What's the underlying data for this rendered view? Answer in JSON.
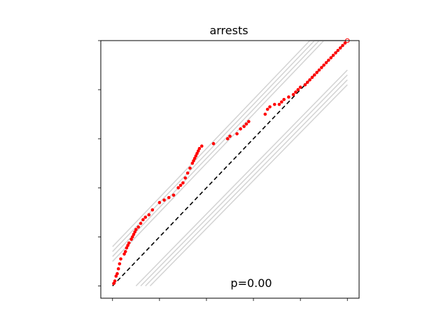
{
  "chart_data": {
    "type": "scatter",
    "title": "arrests",
    "xlabel": "",
    "ylabel": "",
    "annotation": "p=0.00",
    "xlim": [
      -0.05,
      1.05
    ],
    "ylim": [
      -0.05,
      1.0
    ],
    "x_ticks": [
      0.0,
      0.2,
      0.4,
      0.6,
      0.8,
      1.0
    ],
    "y_ticks": [
      0.0,
      0.2,
      0.4,
      0.6,
      0.8,
      1.0
    ],
    "tick_labels_visible": false,
    "grid": false,
    "reference_line": {
      "style": "dashed",
      "color": "#000000",
      "from": [
        0,
        0
      ],
      "to": [
        1,
        1
      ]
    },
    "envelope_color": "#d3d3d3",
    "envelopes": [
      [
        [
          0.0,
          0.16
        ],
        [
          0.84,
          1.0
        ],
        [
          1.0,
          1.0
        ]
      ],
      [
        [
          0.0,
          0.14
        ],
        [
          0.86,
          1.0
        ],
        [
          1.0,
          1.0
        ]
      ],
      [
        [
          0.0,
          0.12
        ],
        [
          0.88,
          1.0
        ],
        [
          1.0,
          1.0
        ]
      ],
      [
        [
          0.0,
          0.1
        ],
        [
          0.9,
          1.0
        ],
        [
          1.0,
          1.0
        ]
      ],
      [
        [
          0.1,
          0.0
        ],
        [
          1.0,
          0.88
        ]
      ],
      [
        [
          0.12,
          0.0
        ],
        [
          1.0,
          0.86
        ]
      ],
      [
        [
          0.14,
          0.0
        ],
        [
          1.0,
          0.84
        ]
      ],
      [
        [
          0.16,
          0.0
        ],
        [
          1.0,
          0.82
        ]
      ]
    ],
    "series": [
      {
        "color": "#ff0000",
        "points": [
          [
            0.005,
            0.01
          ],
          [
            0.01,
            0.02
          ],
          [
            0.015,
            0.04
          ],
          [
            0.02,
            0.05
          ],
          [
            0.025,
            0.07
          ],
          [
            0.03,
            0.09
          ],
          [
            0.035,
            0.11
          ],
          [
            0.05,
            0.13
          ],
          [
            0.055,
            0.14
          ],
          [
            0.06,
            0.155
          ],
          [
            0.065,
            0.165
          ],
          [
            0.07,
            0.175
          ],
          [
            0.08,
            0.19
          ],
          [
            0.085,
            0.2
          ],
          [
            0.09,
            0.21
          ],
          [
            0.095,
            0.22
          ],
          [
            0.1,
            0.23
          ],
          [
            0.11,
            0.24
          ],
          [
            0.12,
            0.255
          ],
          [
            0.13,
            0.27
          ],
          [
            0.14,
            0.28
          ],
          [
            0.155,
            0.29
          ],
          [
            0.17,
            0.31
          ],
          [
            0.2,
            0.34
          ],
          [
            0.22,
            0.35
          ],
          [
            0.24,
            0.36
          ],
          [
            0.26,
            0.37
          ],
          [
            0.28,
            0.4
          ],
          [
            0.29,
            0.41
          ],
          [
            0.3,
            0.42
          ],
          [
            0.31,
            0.44
          ],
          [
            0.32,
            0.46
          ],
          [
            0.33,
            0.48
          ],
          [
            0.34,
            0.5
          ],
          [
            0.345,
            0.51
          ],
          [
            0.35,
            0.52
          ],
          [
            0.355,
            0.53
          ],
          [
            0.36,
            0.54
          ],
          [
            0.365,
            0.55
          ],
          [
            0.37,
            0.56
          ],
          [
            0.38,
            0.57
          ],
          [
            0.43,
            0.58
          ],
          [
            0.49,
            0.6
          ],
          [
            0.5,
            0.61
          ],
          [
            0.53,
            0.62
          ],
          [
            0.545,
            0.64
          ],
          [
            0.56,
            0.65
          ],
          [
            0.57,
            0.66
          ],
          [
            0.58,
            0.67
          ],
          [
            0.65,
            0.7
          ],
          [
            0.66,
            0.72
          ],
          [
            0.67,
            0.73
          ],
          [
            0.69,
            0.74
          ],
          [
            0.71,
            0.74
          ],
          [
            0.72,
            0.75
          ],
          [
            0.73,
            0.76
          ],
          [
            0.75,
            0.77
          ],
          [
            0.77,
            0.78
          ],
          [
            0.78,
            0.79
          ],
          [
            0.79,
            0.8
          ],
          [
            0.8,
            0.81
          ],
          [
            0.82,
            0.82
          ],
          [
            0.83,
            0.83
          ],
          [
            0.84,
            0.84
          ],
          [
            0.85,
            0.85
          ],
          [
            0.86,
            0.86
          ],
          [
            0.87,
            0.87
          ],
          [
            0.88,
            0.88
          ],
          [
            0.89,
            0.89
          ],
          [
            0.9,
            0.9
          ],
          [
            0.91,
            0.91
          ],
          [
            0.92,
            0.92
          ],
          [
            0.93,
            0.93
          ],
          [
            0.94,
            0.94
          ],
          [
            0.95,
            0.95
          ],
          [
            0.96,
            0.96
          ],
          [
            0.97,
            0.97
          ],
          [
            0.98,
            0.98
          ],
          [
            0.99,
            0.99
          ],
          [
            1.0,
            1.0
          ]
        ]
      }
    ]
  }
}
